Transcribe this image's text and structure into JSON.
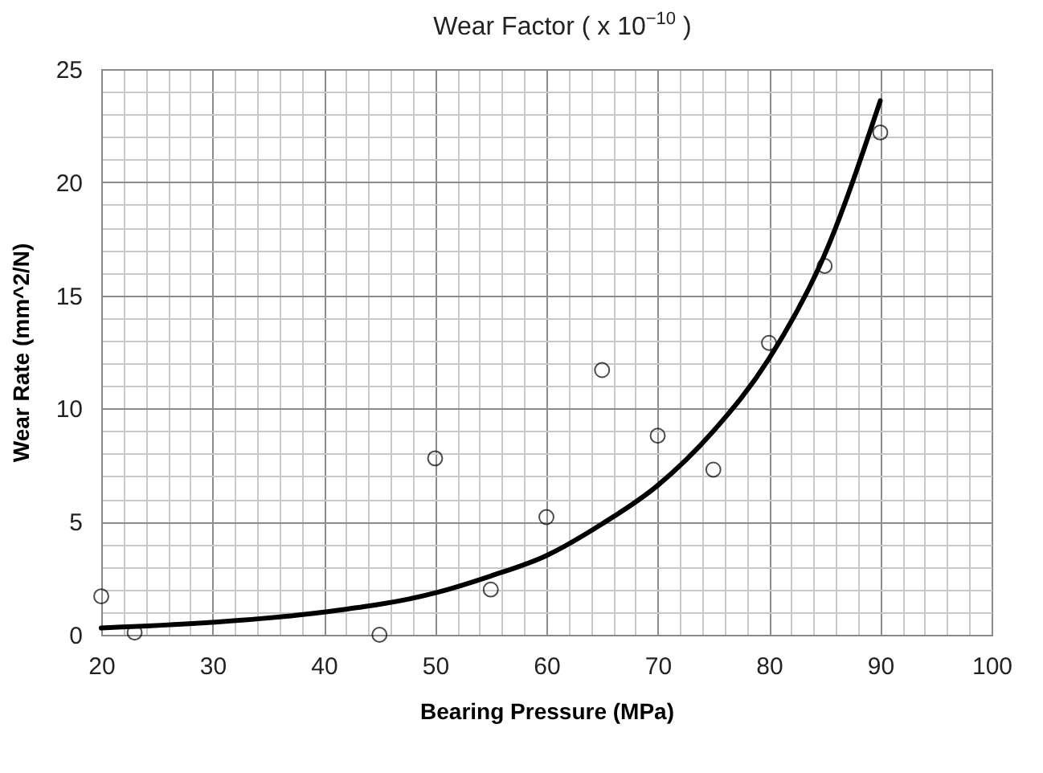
{
  "chart_data": {
    "type": "scatter",
    "title": "Wear Factor ( x 10$^{−10}$ )",
    "xlabel": "Bearing Pressure (MPa)",
    "ylabel": "Wear Rate (mm^2/N)",
    "xlim": [
      20,
      100
    ],
    "ylim": [
      0,
      25
    ],
    "xticks": [
      20,
      {
        "value": 22,
        "label": null
      },
      {
        "value": 24,
        "label": null
      },
      {
        "value": 26,
        "label": null
      },
      {
        "value": 28,
        "label": null
      },
      30,
      {
        "value": 32,
        "label": null
      },
      {
        "value": 34,
        "label": null
      },
      {
        "value": 36,
        "label": null
      },
      {
        "value": 38,
        "label": null
      },
      40,
      {
        "value": 42,
        "label": null
      },
      {
        "value": 44,
        "label": null
      },
      {
        "value": 46,
        "label": null
      },
      {
        "value": 48,
        "label": null
      },
      50,
      {
        "value": 52,
        "label": null
      },
      {
        "value": 54,
        "label": null
      },
      {
        "value": 56,
        "label": null
      },
      {
        "value": 58,
        "label": null
      },
      60,
      {
        "value": 62,
        "label": null
      },
      {
        "value": 64,
        "label": null
      },
      {
        "value": 66,
        "label": null
      },
      {
        "value": 68,
        "label": null
      },
      70,
      {
        "value": 72,
        "label": null
      },
      {
        "value": 74,
        "label": null
      },
      {
        "value": 76,
        "label": null
      },
      {
        "value": 78,
        "label": null
      },
      80,
      {
        "value": 82,
        "label": null
      },
      {
        "value": 84,
        "label": null
      },
      {
        "value": 86,
        "label": null
      },
      {
        "value": 88,
        "label": null
      },
      90,
      {
        "value": 92,
        "label": null
      },
      {
        "value": 94,
        "label": null
      },
      {
        "value": 96,
        "label": null
      },
      {
        "value": 98,
        "label": null
      },
      100
    ],
    "yticks": [
      0,
      {
        "value": 1,
        "label": null
      },
      {
        "value": 2,
        "label": null
      },
      {
        "value": 3,
        "label": null
      },
      {
        "value": 4,
        "label": null
      },
      5,
      {
        "value": 6,
        "label": null
      },
      {
        "value": 7,
        "label": null
      },
      {
        "value": 8,
        "label": null
      },
      {
        "value": 9,
        "label": null
      },
      10,
      {
        "value": 11,
        "label": null
      },
      {
        "value": 12,
        "label": null
      },
      {
        "value": 13,
        "label": null
      },
      {
        "value": 14,
        "label": null
      },
      15,
      {
        "value": 16,
        "label": null
      },
      {
        "value": 17,
        "label": null
      },
      {
        "value": 18,
        "label": null
      },
      {
        "value": 19,
        "label": null
      },
      20,
      {
        "value": 21,
        "label": null
      },
      {
        "value": 22,
        "label": null
      },
      {
        "value": 23,
        "label": null
      },
      {
        "value": 24,
        "label": null
      },
      25
    ],
    "grid": true,
    "marker": "circle",
    "series": [
      {
        "color": "#000000",
        "x": [
          20,
          23,
          45,
          50,
          55,
          60,
          65,
          70,
          75,
          80,
          85,
          90
        ],
        "values": [
          1.7,
          0.1,
          0.0,
          7.8,
          2.0,
          5.2,
          11.7,
          8.8,
          7.3,
          12.9,
          16.3,
          22.2
        ]
      },
      {
        "type": "line",
        "marker": "none",
        "color": "#000000",
        "x": [
          20,
          30,
          40,
          50,
          55,
          60,
          65,
          70,
          75,
          80,
          85,
          90
        ],
        "values": [
          0.3,
          0.55,
          1.0,
          1.85,
          2.6,
          3.5,
          4.9,
          6.6,
          9.0,
          12.2,
          16.8,
          23.6
        ]
      }
    ]
  }
}
